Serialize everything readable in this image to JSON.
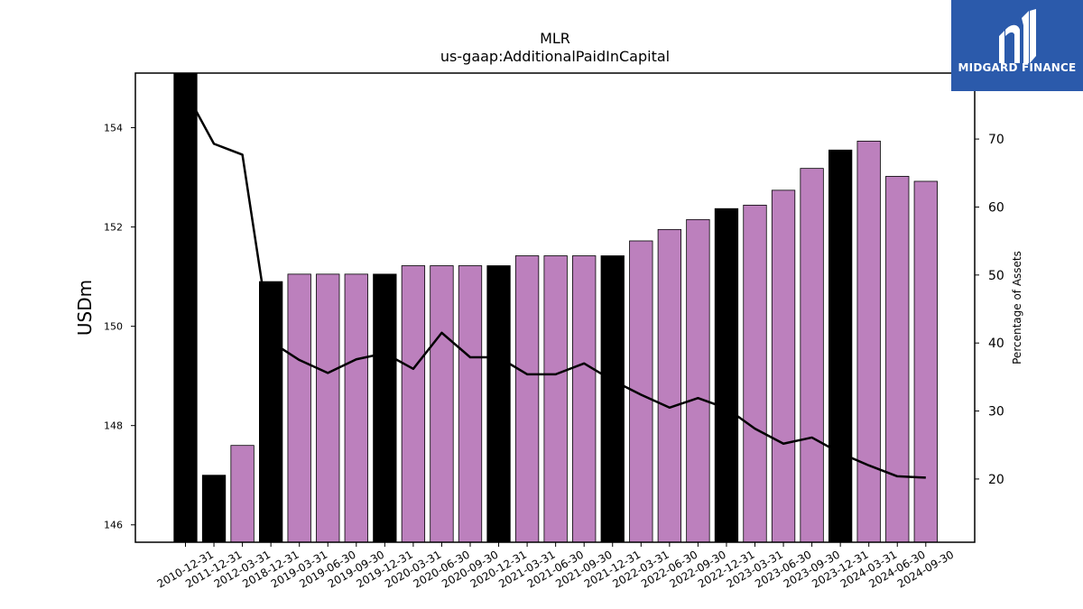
{
  "chart_data": {
    "type": "bar",
    "title": "MLR",
    "subtitle": "us-gaap:AdditionalPaidInCapital",
    "ylabel": "USDm",
    "y2label": "Percentage of Assets",
    "categories": [
      "2010-12-31",
      "2011-12-31",
      "2012-03-31",
      "2018-12-31",
      "2019-03-31",
      "2019-06-30",
      "2019-09-30",
      "2019-12-31",
      "2020-03-31",
      "2020-06-30",
      "2020-09-30",
      "2020-12-31",
      "2021-03-31",
      "2021-06-30",
      "2021-09-30",
      "2021-12-31",
      "2022-03-31",
      "2022-06-30",
      "2022-09-30",
      "2022-12-31",
      "2023-03-31",
      "2023-06-30",
      "2023-09-30",
      "2023-12-31",
      "2024-03-31",
      "2024-06-30",
      "2024-09-30"
    ],
    "values": [
      155.1,
      147.0,
      147.6,
      150.9,
      151.05,
      151.05,
      151.05,
      151.05,
      151.22,
      151.22,
      151.22,
      151.22,
      151.42,
      151.42,
      151.42,
      151.42,
      151.72,
      151.95,
      152.15,
      152.37,
      152.44,
      152.74,
      153.18,
      153.55,
      153.73,
      153.02,
      152.92
    ],
    "bar_colors": [
      "#000000",
      "#000000",
      "#bc80bd",
      "#000000",
      "#bc80bd",
      "#bc80bd",
      "#bc80bd",
      "#000000",
      "#bc80bd",
      "#bc80bd",
      "#bc80bd",
      "#000000",
      "#bc80bd",
      "#bc80bd",
      "#bc80bd",
      "#000000",
      "#bc80bd",
      "#bc80bd",
      "#bc80bd",
      "#000000",
      "#bc80bd",
      "#bc80bd",
      "#bc80bd",
      "#000000",
      "#bc80bd",
      "#bc80bd",
      "#bc80bd"
    ],
    "percent_of_assets": [
      77.0,
      69.3,
      67.7,
      40.2,
      37.5,
      35.6,
      37.6,
      38.5,
      36.2,
      41.5,
      37.9,
      37.9,
      35.4,
      35.4,
      37.0,
      34.5,
      32.4,
      30.5,
      31.9,
      30.4,
      27.4,
      25.2,
      26.1,
      23.8,
      22.0,
      20.4,
      20.2
    ],
    "y_ticks": [
      146,
      148,
      150,
      152,
      154
    ],
    "y2_ticks": [
      20,
      30,
      40,
      50,
      60,
      70
    ],
    "ylim": [
      145.65,
      155.1
    ],
    "y2lim": [
      10.7,
      79.7
    ],
    "colors": {
      "highlight_bar": "#000000",
      "bar": "#bc80bd",
      "line": "#000000"
    }
  },
  "logo": {
    "text": "MIDGARD FINANCE"
  }
}
